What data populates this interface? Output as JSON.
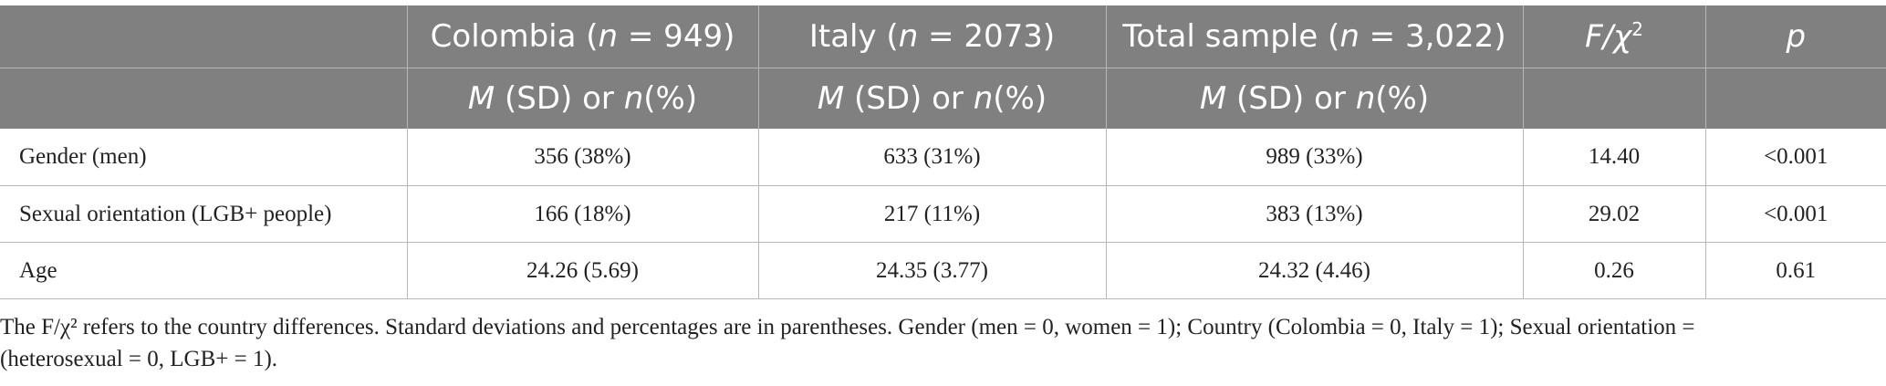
{
  "table": {
    "header_row1": {
      "col0": "",
      "colombia_prefix": "Colombia (",
      "colombia_n": "n",
      "colombia_suffix": " = 949)",
      "italy_prefix": "Italy (",
      "italy_n": "n",
      "italy_suffix": " = 2073)",
      "total_prefix": "Total sample (",
      "total_n": "n",
      "total_suffix": " = 3,022)",
      "stat_f": "F/",
      "stat_chi": "χ",
      "stat_sup": "2",
      "p": "p"
    },
    "header_row2": {
      "m_label": "M",
      "sd_or": " (SD) or ",
      "n_label": "n",
      "pct": "(%)"
    },
    "rows": [
      {
        "label": "Gender (men)",
        "colombia": "356 (38%)",
        "italy": "633 (31%)",
        "total": "989 (33%)",
        "stat": "14.40",
        "p": "<0.001"
      },
      {
        "label": "Sexual orientation (LGB+ people)",
        "colombia": "166 (18%)",
        "italy": "217 (11%)",
        "total": "383 (13%)",
        "stat": "29.02",
        "p": "<0.001"
      },
      {
        "label": "Age",
        "colombia": "24.26 (5.69)",
        "italy": "24.35 (3.77)",
        "total": "24.32 (4.46)",
        "stat": "0.26",
        "p": "0.61"
      }
    ]
  },
  "note": "The F/χ² refers to the country differences. Standard deviations and percentages are in parentheses. Gender (men = 0, women = 1); Country (Colombia = 0, Italy = 1); Sexual orientation = (heterosexual = 0, LGB+ = 1).",
  "colors": {
    "header_bg": "#808080",
    "header_text": "#ffffff",
    "rule": "#b7b7b7",
    "body_text": "#222222"
  }
}
